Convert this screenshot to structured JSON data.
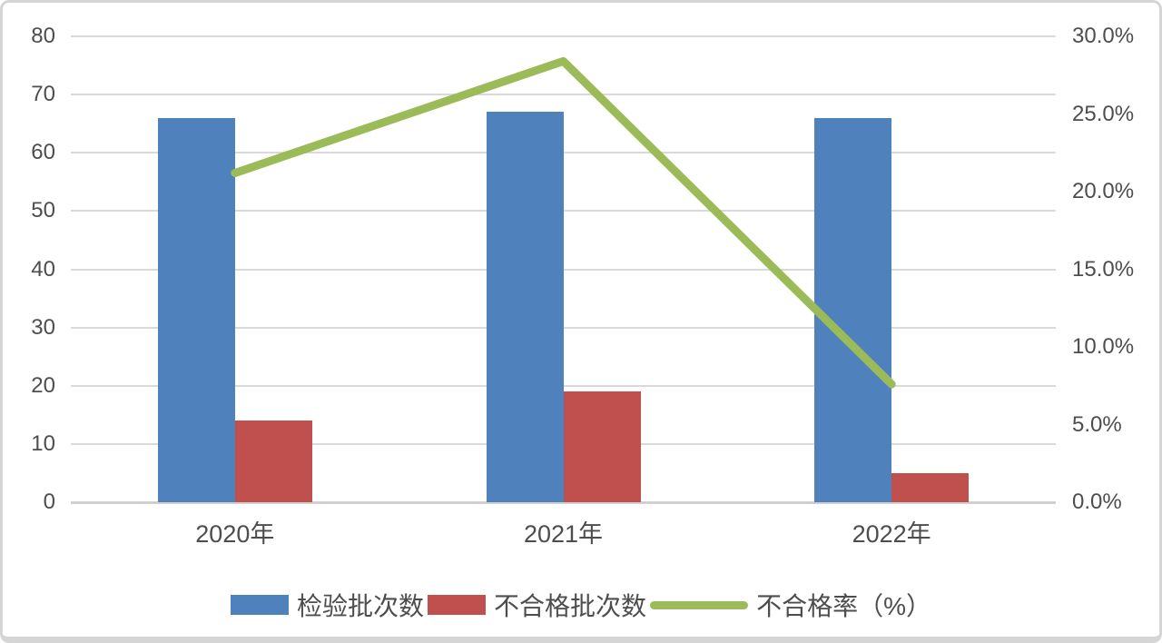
{
  "chart": {
    "background": "#ffffff",
    "frame_border_color": "#d5d5d5",
    "grid_color": "#d9d9d9",
    "axis_line_color": "#d0d0d0",
    "label_color": "#4d4d4d"
  },
  "chart_data": {
    "type": "combo-bar-line",
    "title": "",
    "categories": [
      "2020年",
      "2021年",
      "2022年"
    ],
    "series": [
      {
        "name": "检验批次数",
        "type": "bar",
        "axis": "left",
        "color": "#4F81BD",
        "values": [
          66,
          67,
          66
        ]
      },
      {
        "name": "不合格批次数",
        "type": "bar",
        "axis": "left",
        "color": "#C0504D",
        "values": [
          14,
          19,
          5
        ]
      },
      {
        "name": "不合格率（%）",
        "type": "line",
        "axis": "right",
        "color": "#9BBB59",
        "values": [
          21.2,
          28.4,
          7.6
        ]
      }
    ],
    "left_axis": {
      "min": 0,
      "max": 80,
      "step": 10,
      "tick_labels": [
        "0",
        "10",
        "20",
        "30",
        "40",
        "50",
        "60",
        "70",
        "80"
      ]
    },
    "right_axis": {
      "min": 0,
      "max": 30,
      "step": 5,
      "tick_labels": [
        "0.0%",
        "5.0%",
        "10.0%",
        "15.0%",
        "20.0%",
        "25.0%",
        "30.0%"
      ]
    },
    "grid": true,
    "legend": {
      "position": "bottom",
      "entries": [
        {
          "label": "检验批次数",
          "swatch": "bar",
          "color": "#4F81BD"
        },
        {
          "label": "不合格批次数",
          "swatch": "bar",
          "color": "#C0504D"
        },
        {
          "label": "不合格率（%）",
          "swatch": "line",
          "color": "#9BBB59"
        }
      ]
    }
  }
}
